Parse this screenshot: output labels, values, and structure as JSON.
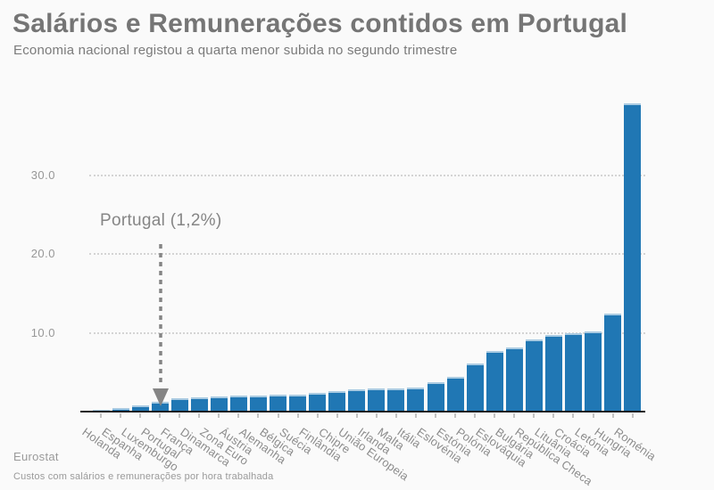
{
  "header": {
    "title": "Salários e Remunerações contidos em Portugal",
    "subtitle": "Economia nacional registou a quarta menor subida no segundo trimestre"
  },
  "annotation": {
    "label": "Portugal (1,2%)"
  },
  "footer": {
    "source": "Eurostat",
    "note": "Custos com salários e remunerações por hora trabalhada"
  },
  "colors": {
    "background": "#fafafa",
    "bar": "#2077b4",
    "bar_cap": "#aacbe2",
    "grid": "#d4d4d4",
    "axis": "#1b1b1b",
    "text_gray": "#757575",
    "annotation_gray": "#858585"
  },
  "chart_data": {
    "type": "bar",
    "title": "Salários e Remunerações contidos em Portugal",
    "subtitle": "Economia nacional registou a quarta menor subida no segundo trimestre",
    "xlabel": "",
    "ylabel": "",
    "ylim": [
      0,
      39.5
    ],
    "yticks": [
      10.0,
      20.0,
      30.0
    ],
    "ytick_labels": [
      "10.0",
      "20.0",
      "30.0"
    ],
    "grid": "horizontal-dotted",
    "legend": "none",
    "annotation": {
      "text": "Portugal (1,2%)",
      "target_category": "Portugal"
    },
    "source": "Eurostat",
    "footnote": "Custos com salários e remunerações por hora trabalhada",
    "categories": [
      "Holanda",
      "Espanha",
      "Luxemburgo",
      "Portugal",
      "França",
      "Dinamarca",
      "Zona Euro",
      "Áustria",
      "Alemanha",
      "Bélgica",
      "Suécia",
      "Finlândia",
      "Chipre",
      "União Europeia",
      "Irlanda",
      "Malta",
      "Itália",
      "Eslovénia",
      "Estónia",
      "Polónia",
      "Eslováquia",
      "Bulgária",
      "República Checa",
      "Lituânia",
      "Croácia",
      "Letónia",
      "Hungria",
      "Roménia"
    ],
    "values": [
      0.2,
      0.5,
      0.8,
      1.2,
      1.7,
      1.8,
      1.9,
      2.0,
      2.0,
      2.1,
      2.2,
      2.4,
      2.6,
      2.8,
      2.9,
      3.0,
      3.1,
      3.7,
      4.4,
      6.1,
      7.7,
      8.2,
      9.2,
      9.8,
      10.0,
      10.2,
      12.5,
      39.2
    ]
  }
}
